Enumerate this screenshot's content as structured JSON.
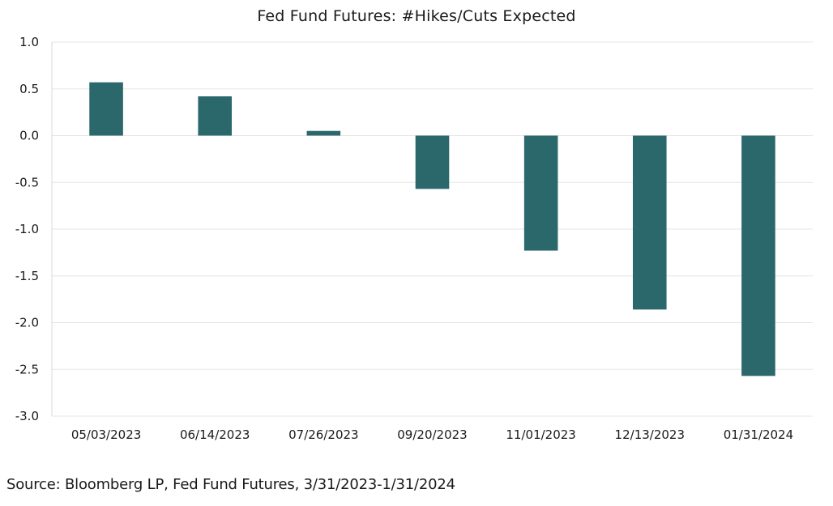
{
  "chart_data": {
    "type": "bar",
    "title": "Fed Fund Futures: #Hikes/Cuts Expected",
    "categories": [
      "05/03/2023",
      "06/14/2023",
      "07/26/2023",
      "09/20/2023",
      "11/01/2023",
      "12/13/2023",
      "01/31/2024"
    ],
    "values": [
      0.57,
      0.42,
      0.05,
      -0.57,
      -1.23,
      -1.86,
      -2.57
    ],
    "ylim": [
      -3.0,
      1.0
    ],
    "yticks": [
      1.0,
      0.5,
      0.0,
      -0.5,
      -1.0,
      -1.5,
      -2.0,
      -2.5,
      -3.0
    ],
    "ytick_labels": [
      "1.0",
      "0.5",
      "0.0",
      "-0.5",
      "-1.0",
      "-1.5",
      "-2.0",
      "-2.5",
      "-3.0"
    ],
    "xlabel": "",
    "ylabel": "",
    "grid": true,
    "legend": "none",
    "bar_color": "#2a686b",
    "grid_color": "#e6e6e6"
  },
  "source": "Source: Bloomberg LP, Fed Fund Futures, 3/31/2023-1/31/2024"
}
